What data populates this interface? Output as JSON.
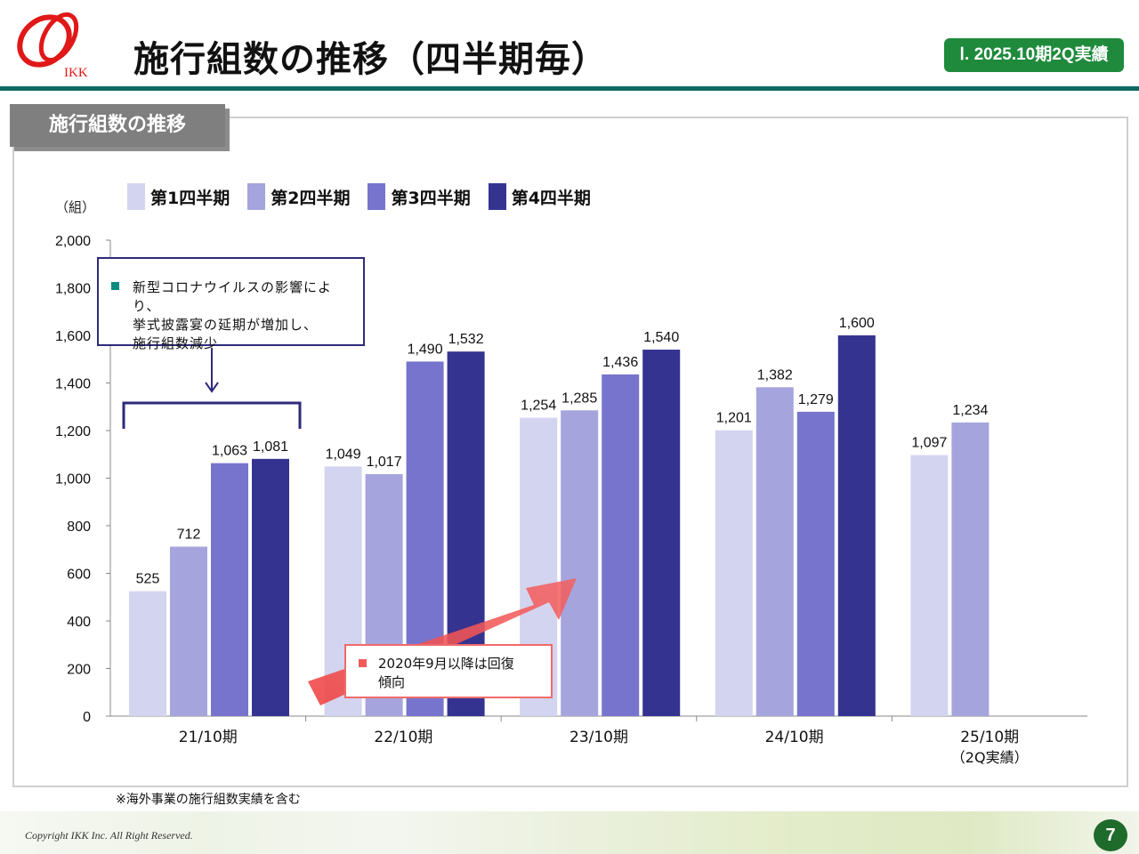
{
  "header": {
    "logo_text": "IKK",
    "title": "施行組数の推移（四半期毎）",
    "badge": "Ⅰ. 2025.10期2Q実績"
  },
  "section": {
    "label": "施行組数の推移"
  },
  "legend": [
    "第1四半期",
    "第2四半期",
    "第3四半期",
    "第4四半期"
  ],
  "annotations": {
    "covid_note": [
      "新型コロナウイルスの影響により、",
      "挙式披露宴の延期が増加し、",
      "施行組数減少"
    ],
    "recovery_note": [
      "2020年9月以降は回復",
      "傾向"
    ]
  },
  "footnote": "※海外事業の施行組数実績を含む",
  "footer": {
    "copyright": "Copyright IKK Inc. All Right Reserved.",
    "page_number": "7"
  },
  "colors": {
    "q1": "#d3d4ef",
    "q2": "#a6a4dd",
    "q3": "#7774cd",
    "q4": "#353390",
    "accent_green": "#1f8a3c",
    "rule_teal": "#0e6a63",
    "arrow_red": "#f05a5a"
  },
  "chart_data": {
    "type": "bar",
    "categories": [
      "21/10期",
      "22/10期",
      "23/10期",
      "24/10期",
      "25/10期"
    ],
    "category_sublabels": [
      "",
      "",
      "",
      "",
      "（2Q実績）"
    ],
    "series": [
      {
        "name": "第1四半期",
        "values": [
          525,
          1049,
          1254,
          1201,
          1097
        ]
      },
      {
        "name": "第2四半期",
        "values": [
          712,
          1017,
          1285,
          1382,
          1234
        ]
      },
      {
        "name": "第3四半期",
        "values": [
          1063,
          1490,
          1436,
          1279,
          null
        ]
      },
      {
        "name": "第4四半期",
        "values": [
          1081,
          1532,
          1540,
          1600,
          null
        ]
      }
    ],
    "y_unit": "（組）",
    "ylim": [
      0,
      2000
    ],
    "yticks": [
      "0",
      "200",
      "400",
      "600",
      "800",
      "1,000",
      "1,200",
      "1,400",
      "1,600",
      "1,800",
      "2,000"
    ],
    "grid": false,
    "legend_position": "top-left"
  }
}
